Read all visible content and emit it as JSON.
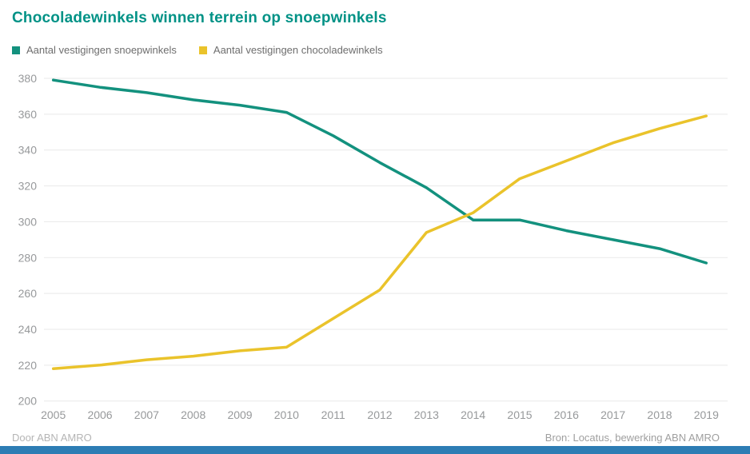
{
  "title": "Chocoladewinkels winnen terrein op snoepwinkels",
  "footer": {
    "left": "Door ABN AMRO",
    "right": "Bron: Locatus, bewerking ABN AMRO"
  },
  "colors": {
    "title": "#009286",
    "snoepwinkels_line": "#13917E",
    "chocoladewinkels_line": "#EAC32B",
    "gridline": "#e9e9e9",
    "tick_label": "#97999b",
    "bottom_bar": "#2d7db4",
    "background": "#ffffff"
  },
  "chart_data": {
    "type": "line",
    "x": [
      2005,
      2006,
      2007,
      2008,
      2009,
      2010,
      2011,
      2012,
      2013,
      2014,
      2015,
      2016,
      2017,
      2018,
      2019
    ],
    "series": [
      {
        "name": "Aantal vestigingen snoepwinkels",
        "color": "#13917E",
        "values": [
          379,
          375,
          372,
          368,
          365,
          361,
          348,
          333,
          319,
          301,
          301,
          295,
          290,
          285,
          277
        ]
      },
      {
        "name": "Aantal vestigingen chocoladewinkels",
        "color": "#EAC32B",
        "values": [
          218,
          220,
          223,
          225,
          228,
          230,
          246,
          262,
          294,
          305,
          324,
          334,
          344,
          352,
          359
        ]
      }
    ],
    "title": "Chocoladewinkels winnen terrein op snoepwinkels",
    "xlabel": "",
    "ylabel": "",
    "ylim": [
      200,
      380
    ],
    "ytick_step": 20,
    "grid": true,
    "legend_position": "top-left"
  }
}
